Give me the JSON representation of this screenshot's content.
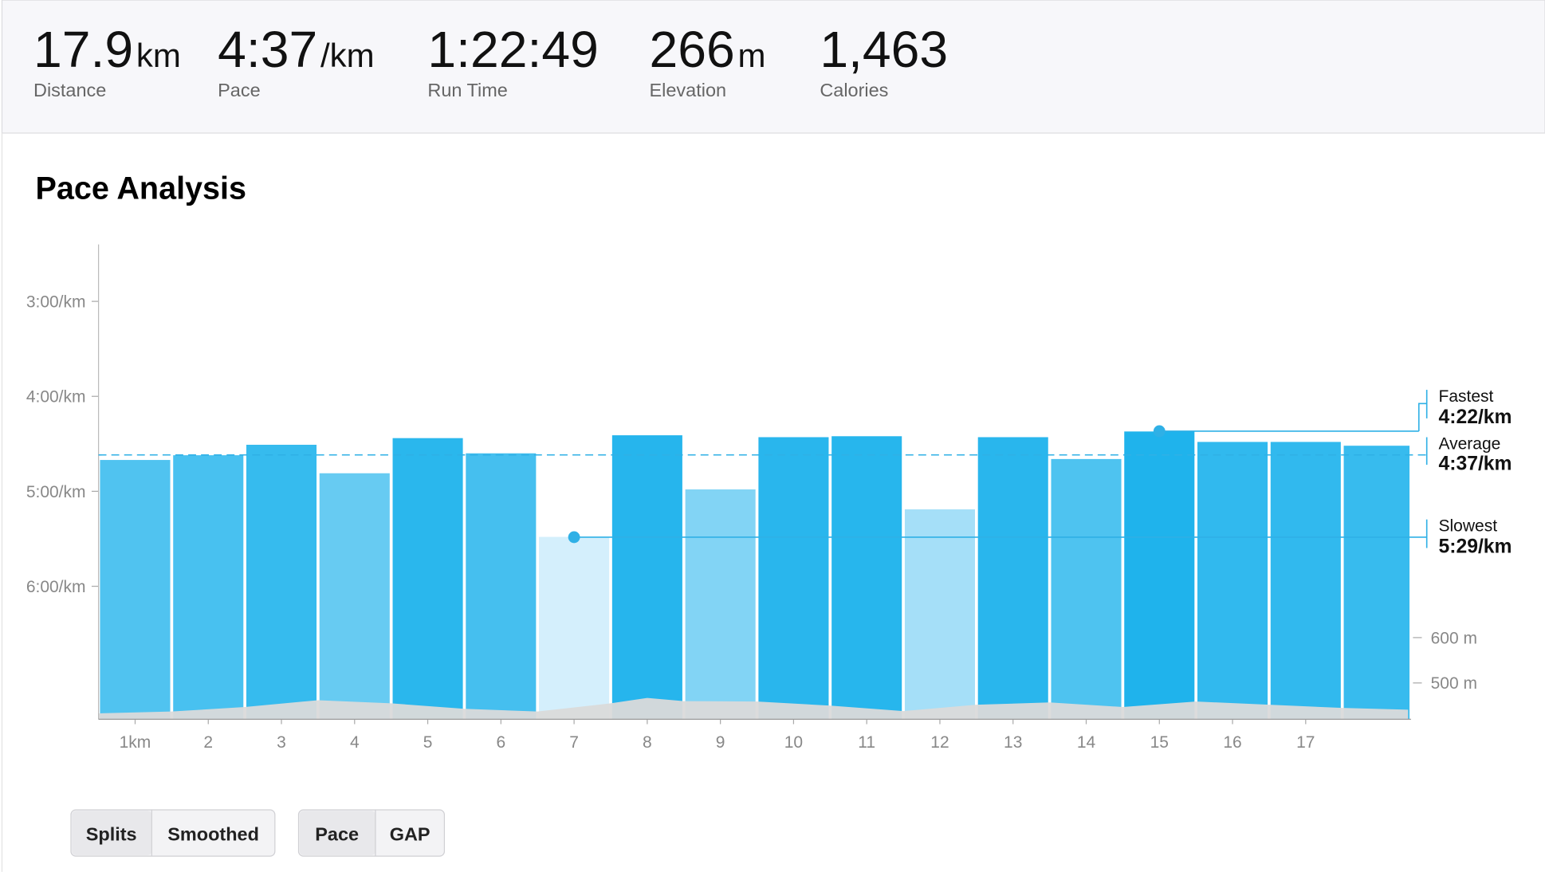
{
  "header": {
    "stats": [
      {
        "value": "17.9",
        "unit": "km",
        "label": "Distance"
      },
      {
        "value": "4:37",
        "unit": "/km",
        "label": "Pace"
      },
      {
        "value": "1:22:49",
        "label": "Run Time"
      },
      {
        "value": "266",
        "unit": "m",
        "label": "Elevation"
      },
      {
        "value": "1,463",
        "label": "Calories"
      }
    ]
  },
  "chart_data": {
    "type": "bar",
    "title": "Pace Analysis",
    "categories": [
      "1km",
      "2",
      "3",
      "4",
      "5",
      "6",
      "7",
      "8",
      "9",
      "10",
      "11",
      "12",
      "13",
      "14",
      "15",
      "16",
      "17",
      null
    ],
    "values": [
      4.67,
      4.62,
      4.51,
      4.81,
      4.44,
      4.6,
      5.48,
      4.41,
      4.98,
      4.43,
      4.42,
      5.19,
      4.43,
      4.66,
      4.37,
      4.48,
      4.48,
      4.52
    ],
    "color": "#1fb3ec",
    "ylim": [
      7.4,
      2.4
    ],
    "yticks": [
      {
        "value": 3,
        "label": "3:00/km"
      },
      {
        "value": 4,
        "label": "4:00/km"
      },
      {
        "value": 5,
        "label": "5:00/km"
      },
      {
        "value": 6,
        "label": "6:00/km"
      }
    ],
    "y2lim": [
      420,
      1467
    ],
    "y2ticks": [
      {
        "value": 600,
        "label": "600 m"
      },
      {
        "value": 500,
        "label": "500 m"
      }
    ],
    "elevation": {
      "x": [
        0,
        1,
        2,
        3,
        4,
        5,
        6,
        7,
        7.5,
        8,
        9,
        10,
        11,
        12,
        13,
        14,
        15,
        16,
        17,
        17.9
      ],
      "values": [
        433,
        437,
        447,
        462,
        455,
        443,
        437,
        455,
        467,
        460,
        459,
        450,
        438,
        452,
        457,
        447,
        459,
        452,
        445,
        441
      ],
      "color": "#dadada",
      "axis": "y2"
    },
    "references": [
      {
        "name": "Fastest",
        "value": 4.367,
        "label": "4:22/km"
      },
      {
        "name": "Average",
        "value": 4.617,
        "label": "4:37/km"
      },
      {
        "name": "Slowest",
        "value": 5.483,
        "label": "5:29/km"
      }
    ]
  },
  "controls": {
    "groups": [
      [
        "Splits",
        "Smoothed"
      ],
      [
        "Pace",
        "GAP"
      ]
    ]
  }
}
